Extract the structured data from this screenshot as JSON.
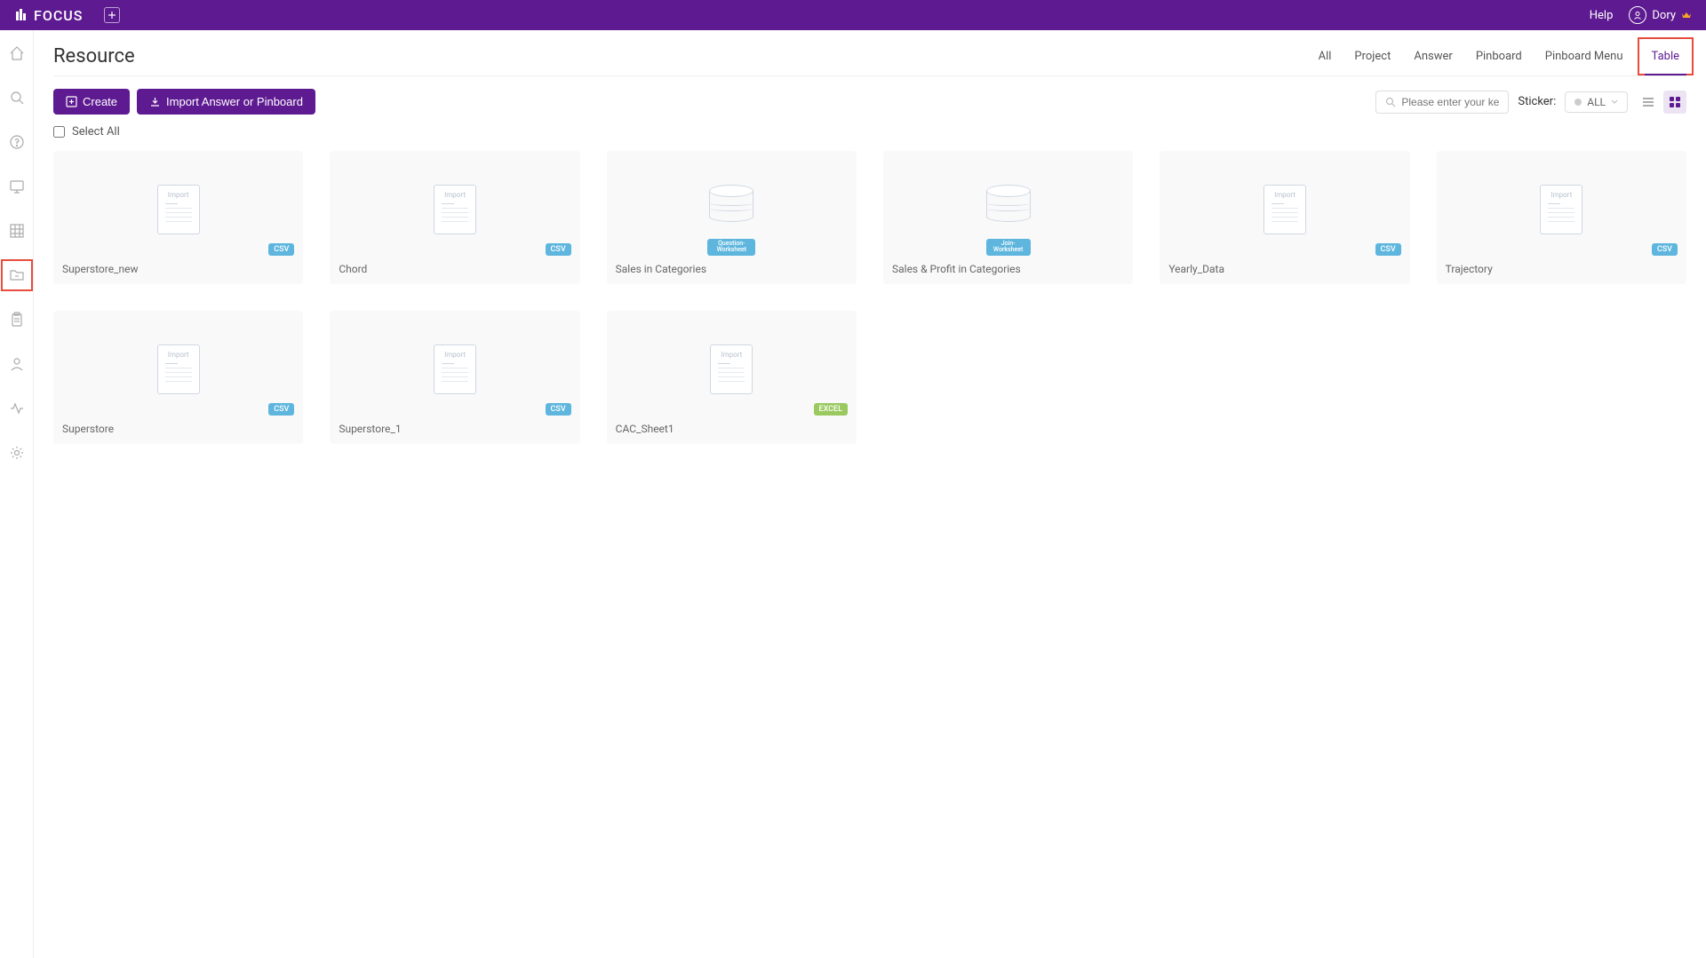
{
  "header": {
    "logo_text": "FOCUS",
    "help_label": "Help",
    "user_name": "Dory"
  },
  "page": {
    "title": "Resource",
    "tabs": [
      {
        "label": "All",
        "active": false
      },
      {
        "label": "Project",
        "active": false
      },
      {
        "label": "Answer",
        "active": false
      },
      {
        "label": "Pinboard",
        "active": false
      },
      {
        "label": "Pinboard Menu",
        "active": false
      },
      {
        "label": "Table",
        "active": true,
        "highlighted": true
      }
    ]
  },
  "toolbar": {
    "create_label": "Create",
    "import_label": "Import Answer or Pinboard",
    "search_placeholder": "Please enter your keywo",
    "sticker_label": "Sticker:",
    "sticker_value": "ALL",
    "select_all_label": "Select All"
  },
  "resources": [
    {
      "name": "Superstore_new",
      "type": "csv",
      "badge_text": "CSV",
      "thumb": "import"
    },
    {
      "name": "Chord",
      "type": "csv",
      "badge_text": "CSV",
      "thumb": "import"
    },
    {
      "name": "Sales in Categories",
      "type": "question",
      "badge_text": "Question-Worksheet",
      "thumb": "db"
    },
    {
      "name": "Sales & Profit in Categories",
      "type": "join",
      "badge_text": "Join-Worksheet",
      "thumb": "db"
    },
    {
      "name": "Yearly_Data",
      "type": "csv",
      "badge_text": "CSV",
      "thumb": "import"
    },
    {
      "name": "Trajectory",
      "type": "csv",
      "badge_text": "CSV",
      "thumb": "import"
    },
    {
      "name": "Superstore",
      "type": "csv",
      "badge_text": "CSV",
      "thumb": "import"
    },
    {
      "name": "Superstore_1",
      "type": "csv",
      "badge_text": "CSV",
      "thumb": "import"
    },
    {
      "name": "CAC_Sheet1",
      "type": "excel",
      "badge_text": "EXCEL",
      "thumb": "import"
    }
  ],
  "colors": {
    "primary": "#5e1a91",
    "highlight": "#e74c3c",
    "csv_badge": "#5eb6de",
    "excel_badge": "#9ac960"
  }
}
